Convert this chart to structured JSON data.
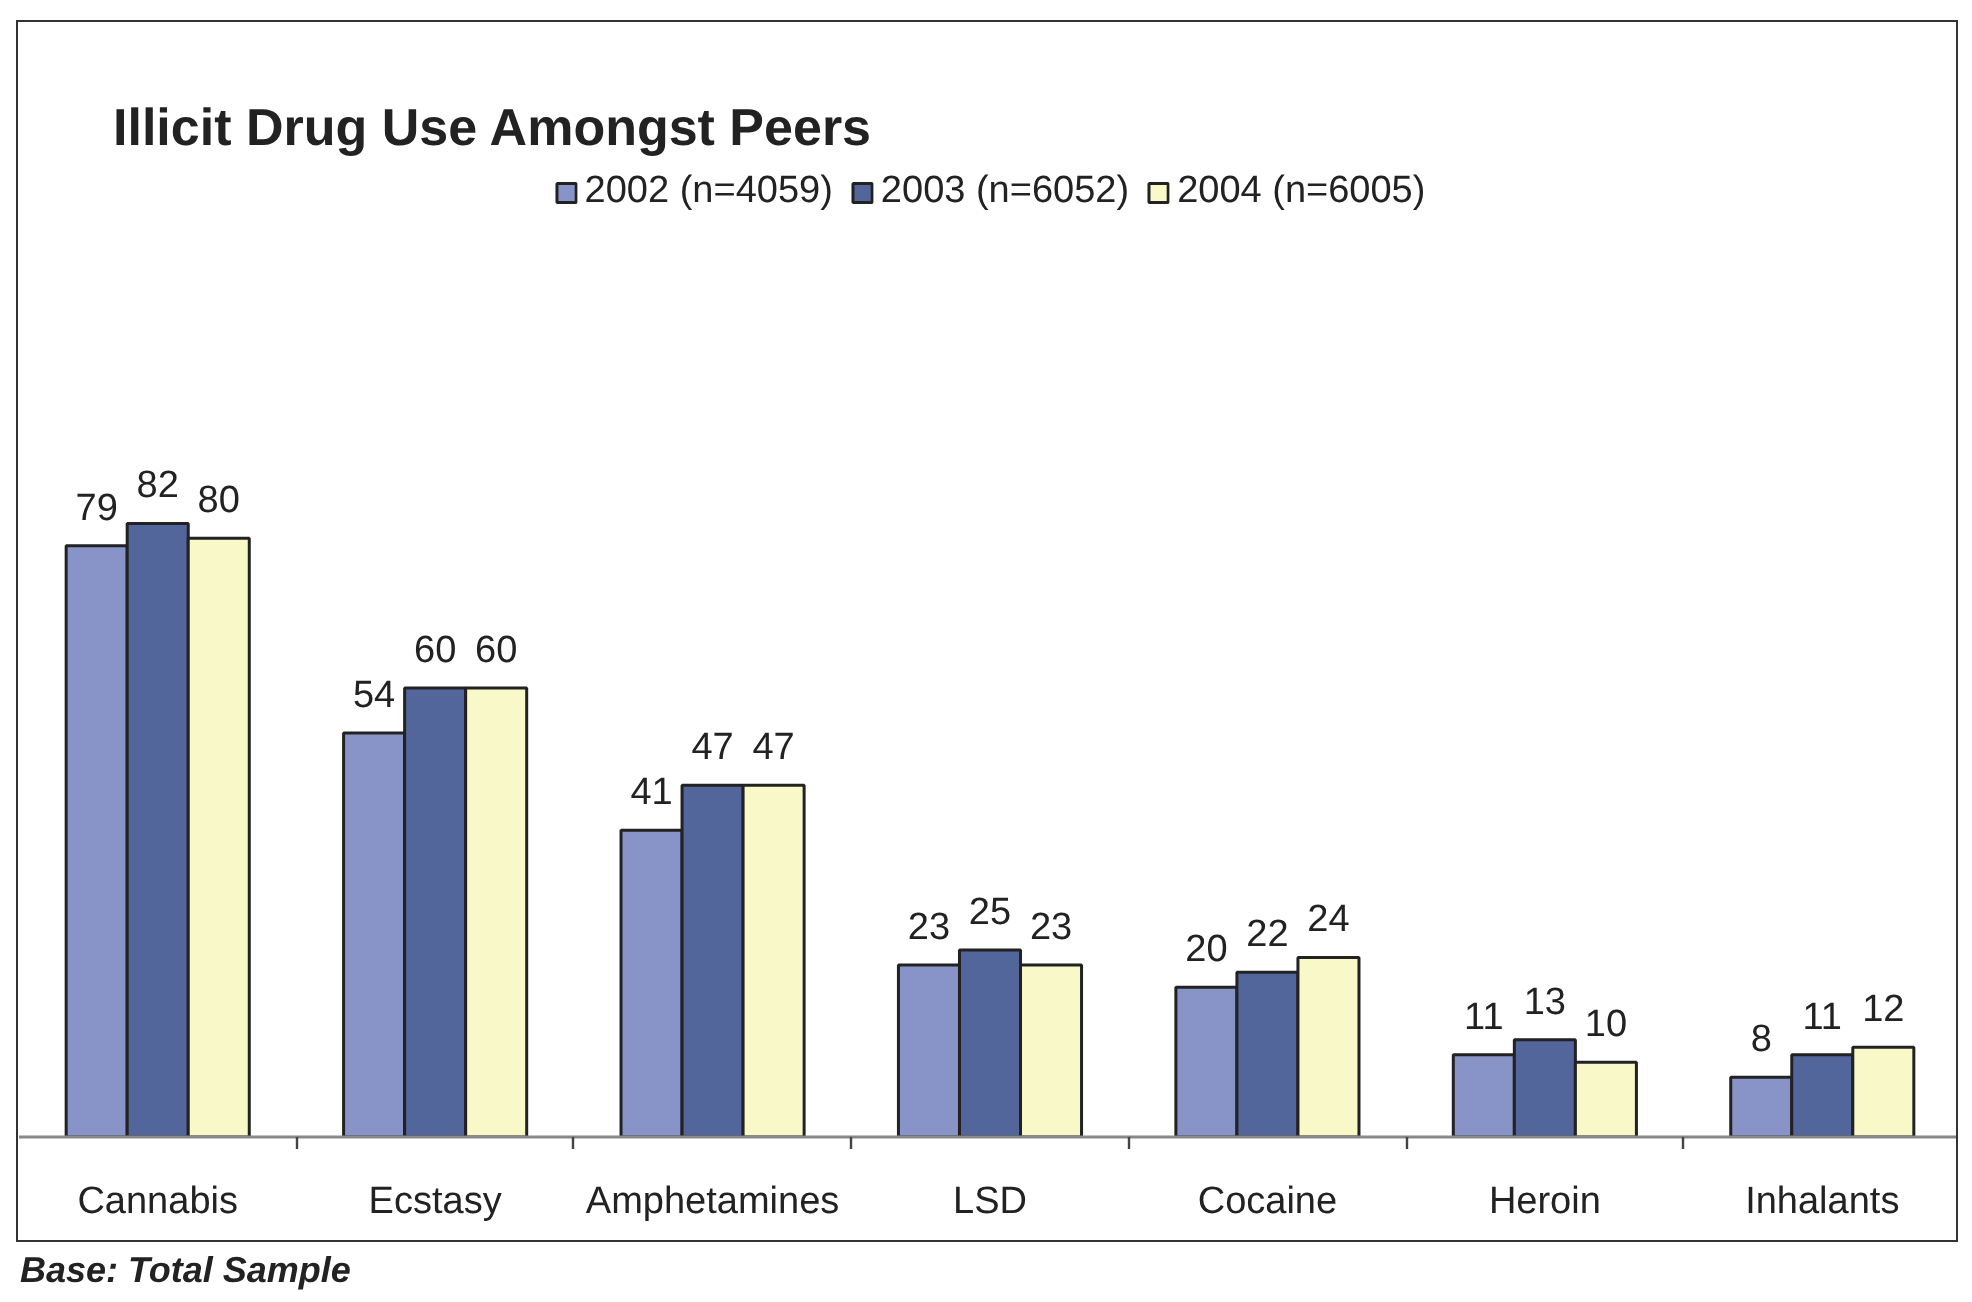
{
  "chart_data": {
    "type": "bar",
    "title": "Illicit Drug Use Amongst Peers",
    "categories": [
      "Cannabis",
      "Ecstasy",
      "Amphetamines",
      "LSD",
      "Cocaine",
      "Heroin",
      "Inhalants"
    ],
    "series": [
      {
        "name": "2002 (n=4059)",
        "color": "#8893c8",
        "values": [
          79,
          54,
          41,
          23,
          20,
          11,
          8
        ]
      },
      {
        "name": "2003 (n=6052)",
        "color": "#53669c",
        "values": [
          82,
          60,
          47,
          25,
          22,
          13,
          11
        ]
      },
      {
        "name": "2004 (n=6005)",
        "color": "#f8f8c8",
        "values": [
          80,
          60,
          47,
          23,
          24,
          10,
          12
        ]
      }
    ],
    "data_labels": true,
    "legend": "top",
    "tick_labels": "x",
    "annotations": [
      "Base: Total Sample"
    ]
  }
}
